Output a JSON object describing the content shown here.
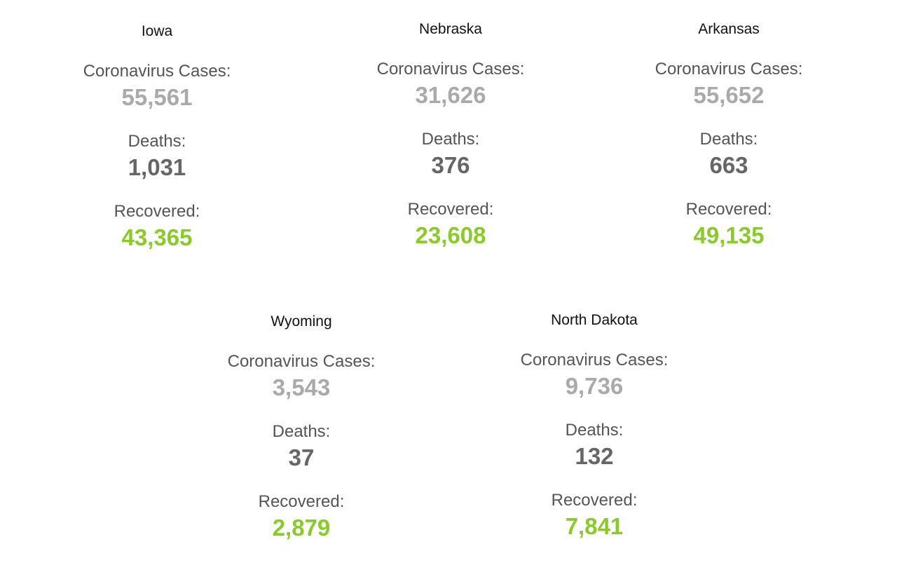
{
  "labels": {
    "cases": "Coronavirus Cases:",
    "deaths": "Deaths:",
    "recovered": "Recovered:"
  },
  "states": [
    {
      "name": "Iowa",
      "cases": "55,561",
      "deaths": "1,031",
      "recovered": "43,365"
    },
    {
      "name": "Nebraska",
      "cases": "31,626",
      "deaths": "376",
      "recovered": "23,608"
    },
    {
      "name": "Arkansas",
      "cases": "55,652",
      "deaths": "663",
      "recovered": "49,135"
    },
    {
      "name": "Wyoming",
      "cases": "3,543",
      "deaths": "37",
      "recovered": "2,879"
    },
    {
      "name": "North Dakota",
      "cases": "9,736",
      "deaths": "132",
      "recovered": "7,841"
    }
  ],
  "colors": {
    "cases": "#aaaaaa",
    "deaths": "#666666",
    "recovered": "#8ACA2B"
  }
}
